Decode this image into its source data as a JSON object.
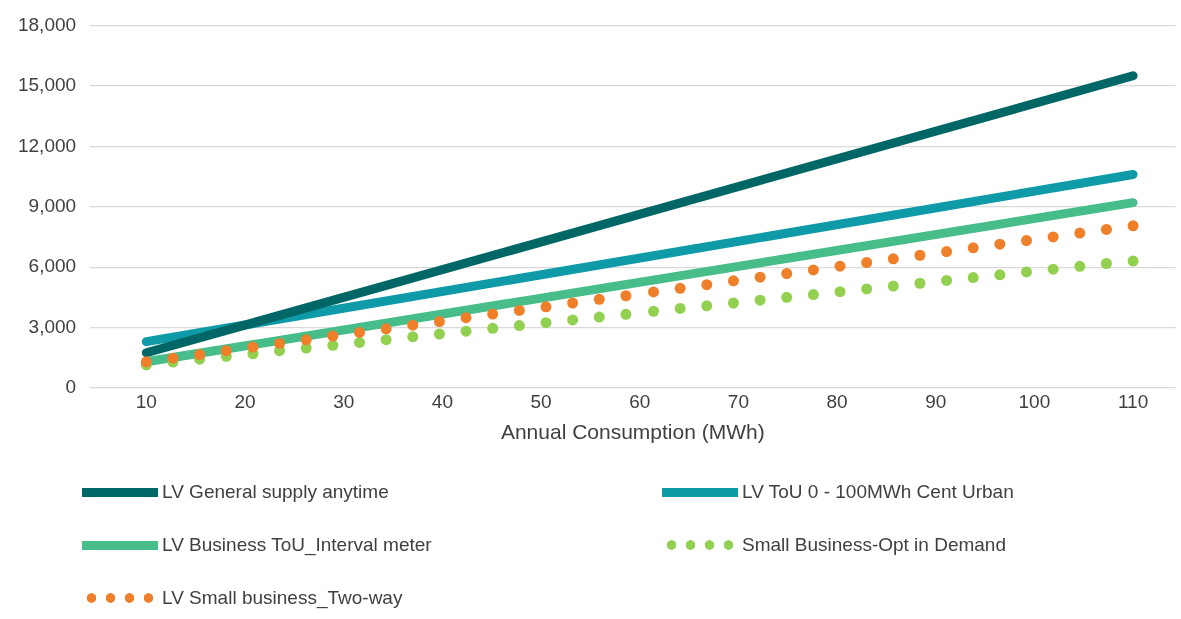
{
  "chart_data": {
    "type": "line",
    "xlabel": "Annual Consumption (MWh)",
    "xlim": [
      4.3,
      114.3
    ],
    "xticks": [
      10,
      20,
      30,
      40,
      50,
      60,
      70,
      80,
      90,
      100,
      110
    ],
    "ylim": [
      0,
      18000
    ],
    "yticks": [
      {
        "value": 0,
        "label": "0"
      },
      {
        "value": 3000,
        "label": "3,000"
      },
      {
        "value": 6000,
        "label": "6,000"
      },
      {
        "value": 9000,
        "label": "9,000"
      },
      {
        "value": 12000,
        "label": "12,000"
      },
      {
        "value": 15000,
        "label": "15,000"
      },
      {
        "value": 18000,
        "label": "18,000"
      }
    ],
    "grid": "y",
    "legend": "bottom",
    "series": [
      {
        "name": "LV General supply anytime",
        "marker": "none",
        "line_style": "solid",
        "color": "#006666",
        "x": [
          10,
          110
        ],
        "values": [
          1750,
          15500
        ]
      },
      {
        "name": "LV ToU 0 - 100MWh Cent Urban",
        "marker": "none",
        "line_style": "solid",
        "color": "#0e9aa7",
        "x": [
          10,
          110
        ],
        "values": [
          2300,
          10600
        ]
      },
      {
        "name": "LV Business ToU_Interval meter",
        "marker": "none",
        "line_style": "solid",
        "color": "#47bd8a",
        "x": [
          10,
          110
        ],
        "values": [
          1300,
          9200
        ]
      },
      {
        "name": "Small Business-Opt in Demand",
        "type": "scatter",
        "marker": "circle",
        "color": "#92d050",
        "x": [
          10,
          12.7,
          15.4,
          18.1,
          20.8,
          23.5,
          26.2,
          28.9,
          31.6,
          34.3,
          37.0,
          39.7,
          42.4,
          45.1,
          47.8,
          50.5,
          53.2,
          55.9,
          58.6,
          61.4,
          64.1,
          66.8,
          69.5,
          72.2,
          74.9,
          77.6,
          80.3,
          83.0,
          85.7,
          88.4,
          91.1,
          93.8,
          96.5,
          99.2,
          101.9,
          104.6,
          107.3,
          110
        ],
        "values": [
          1150,
          1290,
          1430,
          1570,
          1700,
          1850,
          1980,
          2120,
          2260,
          2400,
          2540,
          2680,
          2820,
          2960,
          3100,
          3240,
          3380,
          3520,
          3660,
          3810,
          3950,
          4080,
          4220,
          4360,
          4500,
          4640,
          4780,
          4920,
          5060,
          5200,
          5340,
          5480,
          5620,
          5760,
          5900,
          6040,
          6180,
          6300
        ]
      },
      {
        "name": "LV Small business_Two-way",
        "type": "scatter",
        "marker": "circle",
        "color": "#f07f2a",
        "x": [
          10,
          12.7,
          15.4,
          18.1,
          20.8,
          23.5,
          26.2,
          28.9,
          31.6,
          34.3,
          37.0,
          39.7,
          42.4,
          45.1,
          47.8,
          50.5,
          53.2,
          55.9,
          58.6,
          61.4,
          64.1,
          66.8,
          69.5,
          72.2,
          74.9,
          77.6,
          80.3,
          83.0,
          85.7,
          88.4,
          91.1,
          93.8,
          96.5,
          99.2,
          101.9,
          104.6,
          107.3,
          110
        ],
        "values": [
          1300,
          1480,
          1660,
          1850,
          2030,
          2210,
          2390,
          2580,
          2760,
          2940,
          3120,
          3300,
          3490,
          3670,
          3850,
          4030,
          4220,
          4400,
          4580,
          4770,
          4950,
          5130,
          5320,
          5500,
          5680,
          5860,
          6050,
          6230,
          6410,
          6590,
          6770,
          6960,
          7140,
          7320,
          7500,
          7690,
          7870,
          8050
        ]
      }
    ]
  }
}
